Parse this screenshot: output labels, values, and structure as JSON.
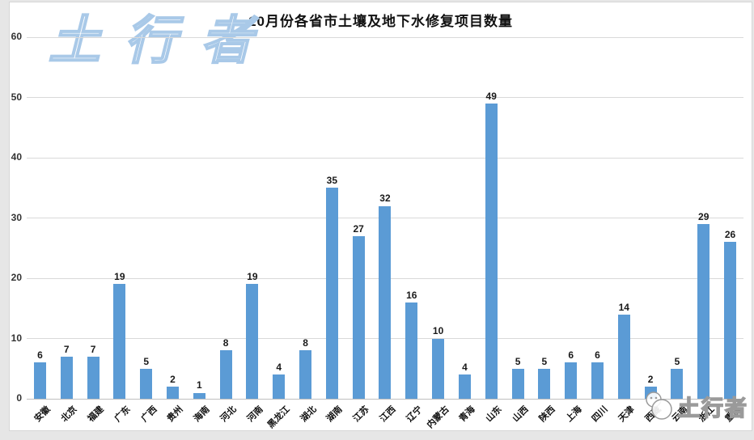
{
  "title": "10月份各省市土壤及地下水修复项目数量",
  "watermark": {
    "top_left": "土行者",
    "bottom_right": "土行者"
  },
  "colors": {
    "bar": "#5B9BD5",
    "watermark_stroke": "#a9c9e8",
    "gridline": "#d9d9d9",
    "frame_bg": "#e6e6e6"
  },
  "chart_data": {
    "type": "bar",
    "title": "10月份各省市土壤及地下水修复项目数量",
    "categories": [
      "安徽",
      "北京",
      "福建",
      "广东",
      "广西",
      "贵州",
      "海南",
      "河北",
      "河南",
      "黑龙江",
      "湖北",
      "湖南",
      "江苏",
      "江西",
      "辽宁",
      "内蒙古",
      "青海",
      "山东",
      "山西",
      "陕西",
      "上海",
      "四川",
      "天津",
      "西藏",
      "云南",
      "浙江",
      "重庆"
    ],
    "values": [
      6,
      7,
      7,
      19,
      5,
      2,
      1,
      8,
      19,
      4,
      8,
      35,
      27,
      32,
      16,
      10,
      4,
      49,
      5,
      5,
      6,
      6,
      14,
      2,
      5,
      29,
      26
    ],
    "xlabel": "",
    "ylabel": "",
    "ylim": [
      0,
      60
    ],
    "yticks": [
      0,
      10,
      20,
      30,
      40,
      50,
      60
    ],
    "grid": true,
    "legend": "none",
    "data_labels": true,
    "x_label_rotation": 45
  }
}
